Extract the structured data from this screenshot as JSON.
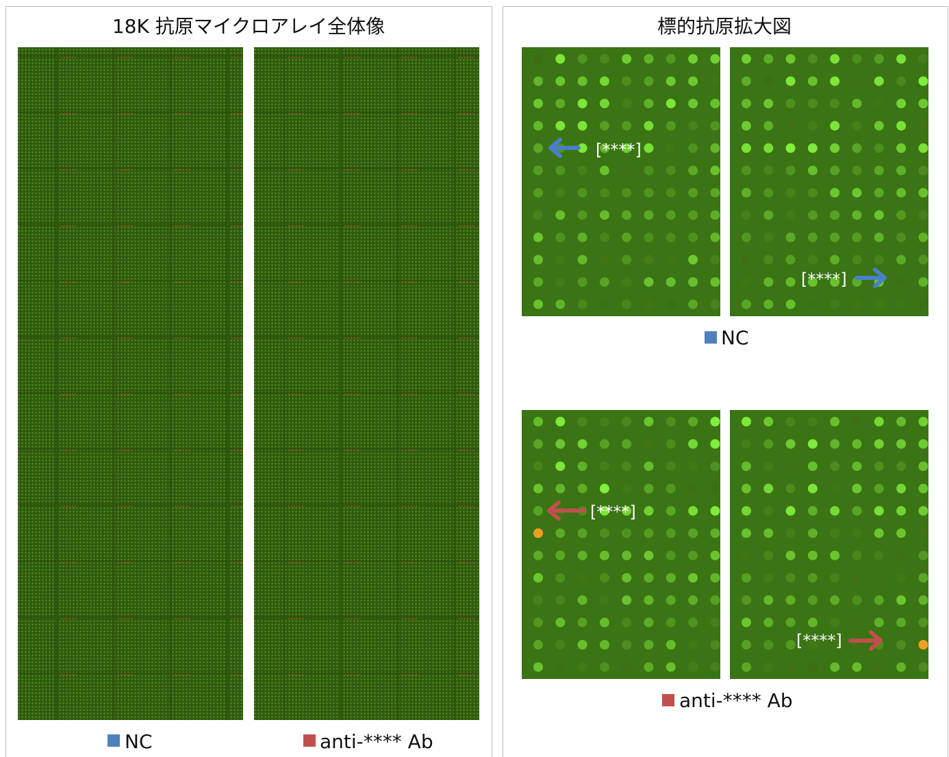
{
  "left_panel": {
    "title": "18K 抗原マイクロアレイ全体像",
    "legend": [
      "NC",
      "anti-**** Ab"
    ]
  },
  "right_panel": {
    "title": "標的抗原拡大図",
    "groups": [
      {
        "label": "NC",
        "annotations": [
          "[****]",
          "[****]"
        ]
      },
      {
        "label": "anti-**** Ab",
        "annotations": [
          "[****]",
          "[****]"
        ]
      }
    ]
  }
}
